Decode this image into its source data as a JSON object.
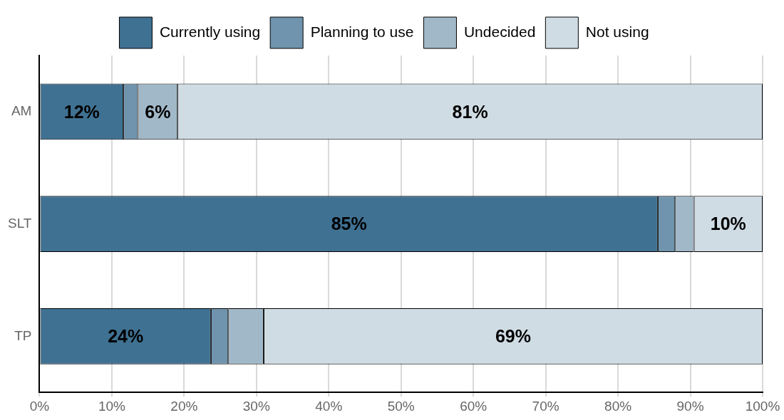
{
  "chart_data": {
    "type": "bar",
    "orientation": "horizontal",
    "stacked": true,
    "categories": [
      "AM",
      "SLT",
      "TP"
    ],
    "series": [
      {
        "name": "Currently using",
        "color": "#3f7192",
        "values": [
          11.6,
          85.5,
          23.7
        ],
        "value_labels": [
          "12%",
          "85%",
          "24%"
        ]
      },
      {
        "name": "Planning to use",
        "color": "#7094ad",
        "values": [
          2.0,
          2.4,
          2.4
        ],
        "value_labels": [
          null,
          null,
          null
        ]
      },
      {
        "name": "Undecided",
        "color": "#a1b8c8",
        "values": [
          5.5,
          2.6,
          4.9
        ],
        "value_labels": [
          "6%",
          null,
          null
        ]
      },
      {
        "name": "Not using",
        "color": "#d0dce4",
        "values": [
          80.9,
          9.5,
          69.0
        ],
        "value_labels": [
          "81%",
          "10%",
          "69%"
        ]
      }
    ],
    "xlim": [
      0,
      100
    ],
    "xticks": [
      {
        "value": 0,
        "label": "0%"
      },
      {
        "value": 10,
        "label": "10%"
      },
      {
        "value": 20,
        "label": "20%"
      },
      {
        "value": 30,
        "label": "30%"
      },
      {
        "value": 40,
        "label": "40%"
      },
      {
        "value": 50,
        "label": "50%"
      },
      {
        "value": 60,
        "label": "60%"
      },
      {
        "value": 70,
        "label": "70%"
      },
      {
        "value": 80,
        "label": "80%"
      },
      {
        "value": 90,
        "label": "90%"
      },
      {
        "value": 100,
        "label": "100%"
      }
    ],
    "grid": "x",
    "legend": "top"
  }
}
